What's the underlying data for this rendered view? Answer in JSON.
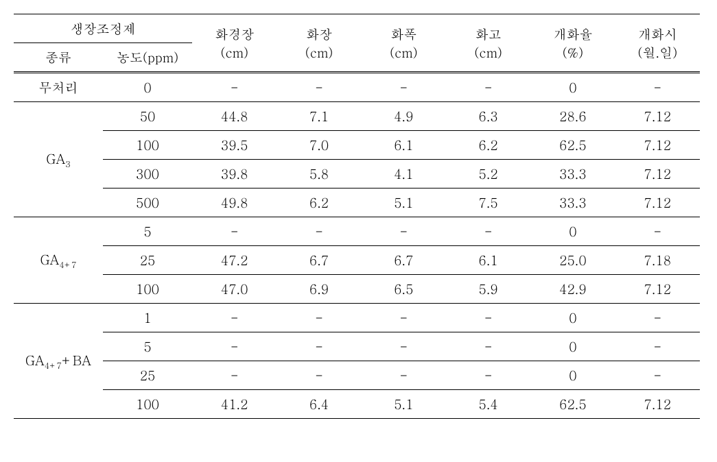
{
  "table": {
    "font_size_pt": 19,
    "text_color": "#000000",
    "background_color": "#ffffff",
    "border_color": "#000000",
    "header": {
      "group_label": "생장조정제",
      "sub_headers": [
        "종류",
        "농도(ppm)"
      ],
      "metric_labels": [
        "화경장",
        "화장",
        "화폭",
        "화고",
        "개화율",
        "개화시"
      ],
      "metric_units": [
        "(cm)",
        "(cm)",
        "(cm)",
        "(cm)",
        "(%)",
        "(월.일)"
      ]
    },
    "groups": [
      {
        "type_label": "무처리",
        "rows": [
          {
            "conc": "0",
            "values": [
              "-",
              "-",
              "-",
              "-",
              "0",
              "-"
            ]
          }
        ]
      },
      {
        "type_label": "GA",
        "type_sub": "3",
        "rows": [
          {
            "conc": "50",
            "values": [
              "44.8",
              "7.1",
              "4.9",
              "6.3",
              "28.6",
              "7.12"
            ]
          },
          {
            "conc": "100",
            "values": [
              "39.5",
              "7.0",
              "6.1",
              "6.2",
              "62.5",
              "7.12"
            ]
          },
          {
            "conc": "300",
            "values": [
              "39.8",
              "5.8",
              "4.1",
              "5.2",
              "33.3",
              "7.12"
            ]
          },
          {
            "conc": "500",
            "values": [
              "49.8",
              "6.2",
              "5.1",
              "7.5",
              "33.3",
              "7.12"
            ]
          }
        ]
      },
      {
        "type_label": "GA",
        "type_sub": "4+7",
        "rows": [
          {
            "conc": "5",
            "values": [
              "-",
              "-",
              "-",
              "-",
              "0",
              "-"
            ]
          },
          {
            "conc": "25",
            "values": [
              "47.2",
              "6.7",
              "6.7",
              "6.1",
              "25.0",
              "7.18"
            ]
          },
          {
            "conc": "100",
            "values": [
              "47.0",
              "6.9",
              "6.5",
              "5.9",
              "42.9",
              "7.12"
            ]
          }
        ]
      },
      {
        "type_label": "GA",
        "type_sub": "4+7",
        "type_suffix": "+BA",
        "rows": [
          {
            "conc": "1",
            "values": [
              "-",
              "-",
              "-",
              "-",
              "0",
              "-"
            ]
          },
          {
            "conc": "5",
            "values": [
              "-",
              "-",
              "-",
              "-",
              "0",
              "-"
            ]
          },
          {
            "conc": "25",
            "values": [
              "-",
              "-",
              "-",
              "-",
              "0",
              "-"
            ]
          },
          {
            "conc": "100",
            "values": [
              "41.2",
              "6.4",
              "5.1",
              "5.4",
              "62.5",
              "7.12"
            ]
          }
        ]
      }
    ]
  }
}
